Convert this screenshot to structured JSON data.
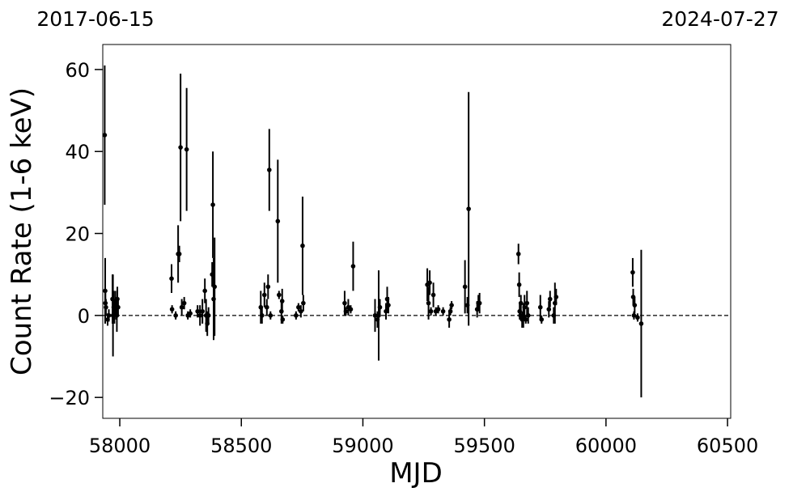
{
  "chart_data": {
    "type": "errorbar",
    "xlabel": "MJD",
    "ylabel": "Count Rate (1-6 keV)",
    "annotations": [
      "2017-06-15",
      "2024-07-27"
    ],
    "color": "#000000",
    "hline": 0,
    "xlim": [
      57930,
      60513
    ],
    "ylim": [
      -25.1,
      66.1
    ],
    "xticks": [
      58000,
      58500,
      59000,
      59500,
      60000,
      60500
    ],
    "yticks": [
      {
        "value": -20,
        "label": "−20"
      },
      0,
      20,
      40,
      60
    ],
    "x": [
      57938,
      57940,
      57941,
      57943,
      57950,
      57955,
      57970,
      57972,
      57975,
      57978,
      57982,
      57985,
      57988,
      57990,
      57993,
      58213,
      58215,
      58230,
      58240,
      58245,
      58250,
      58255,
      58265,
      58275,
      58280,
      58290,
      58320,
      58330,
      58340,
      58350,
      58355,
      58360,
      58365,
      58380,
      58383,
      58386,
      58390,
      58580,
      58585,
      58595,
      58605,
      58610,
      58615,
      58620,
      58650,
      58655,
      58665,
      58668,
      58670,
      58725,
      58735,
      58745,
      58752,
      58755,
      58925,
      58930,
      58940,
      58950,
      58960,
      59050,
      59060,
      59065,
      59070,
      59095,
      59100,
      59105,
      59265,
      59270,
      59275,
      59280,
      59290,
      59300,
      59310,
      59330,
      59355,
      59360,
      59365,
      59420,
      59430,
      59435,
      59470,
      59475,
      59480,
      59640,
      59643,
      59645,
      59648,
      59650,
      59655,
      59660,
      59665,
      59670,
      59675,
      59680,
      59730,
      59735,
      59765,
      59770,
      59785,
      59790,
      59795,
      60110,
      60112,
      60115,
      60118,
      60130,
      60145
    ],
    "values": [
      44,
      6,
      3,
      2,
      -1,
      0,
      4,
      0,
      2,
      1,
      3,
      1,
      0,
      4,
      2,
      9,
      1.5,
      0,
      15,
      15,
      41,
      2,
      3,
      40.5,
      0,
      0.5,
      1,
      0,
      1,
      6,
      0,
      -2,
      0,
      10,
      27,
      4,
      7,
      2,
      0,
      5,
      2,
      7,
      35.5,
      0,
      23,
      5,
      1,
      3.5,
      -1,
      0,
      2,
      1,
      17,
      3,
      3,
      1,
      2,
      1.5,
      12,
      0,
      -1,
      0,
      2,
      1,
      4,
      2.5,
      7.5,
      3,
      8,
      1,
      5,
      1,
      1.5,
      1,
      -1,
      1,
      2.5,
      7,
      2.5,
      26,
      1.5,
      3,
      3,
      15,
      7.5,
      1,
      0,
      3,
      -1,
      0,
      2,
      -1,
      3,
      0,
      2,
      -1,
      1.5,
      4,
      0,
      3,
      4.5,
      10.5,
      4.5,
      0,
      2.5,
      -0.5,
      -2
    ],
    "errors": [
      17,
      8,
      3,
      2,
      1.5,
      1.5,
      6,
      10,
      4,
      3,
      3,
      2,
      4,
      3,
      2,
      3.5,
      1,
      1,
      7,
      2,
      18,
      2,
      1.5,
      15,
      1,
      1,
      1.5,
      2.5,
      3,
      3,
      4,
      3,
      2,
      3,
      13,
      10,
      12,
      4,
      2,
      3,
      2,
      3,
      10,
      1,
      15,
      1,
      3,
      3,
      1,
      1,
      1,
      1.5,
      12,
      2,
      3,
      1,
      2,
      1,
      6,
      4,
      2,
      11,
      2,
      2,
      3,
      2,
      4,
      4,
      3,
      1,
      3,
      1,
      1,
      1,
      2,
      1,
      1,
      6.5,
      2,
      28.5,
      2,
      2,
      2.5,
      2.5,
      3,
      2,
      1,
      2,
      2,
      3,
      3,
      1,
      3,
      2,
      3,
      1,
      2,
      2,
      2,
      5,
      2,
      3.5,
      2,
      1,
      2,
      1,
      18
    ]
  }
}
